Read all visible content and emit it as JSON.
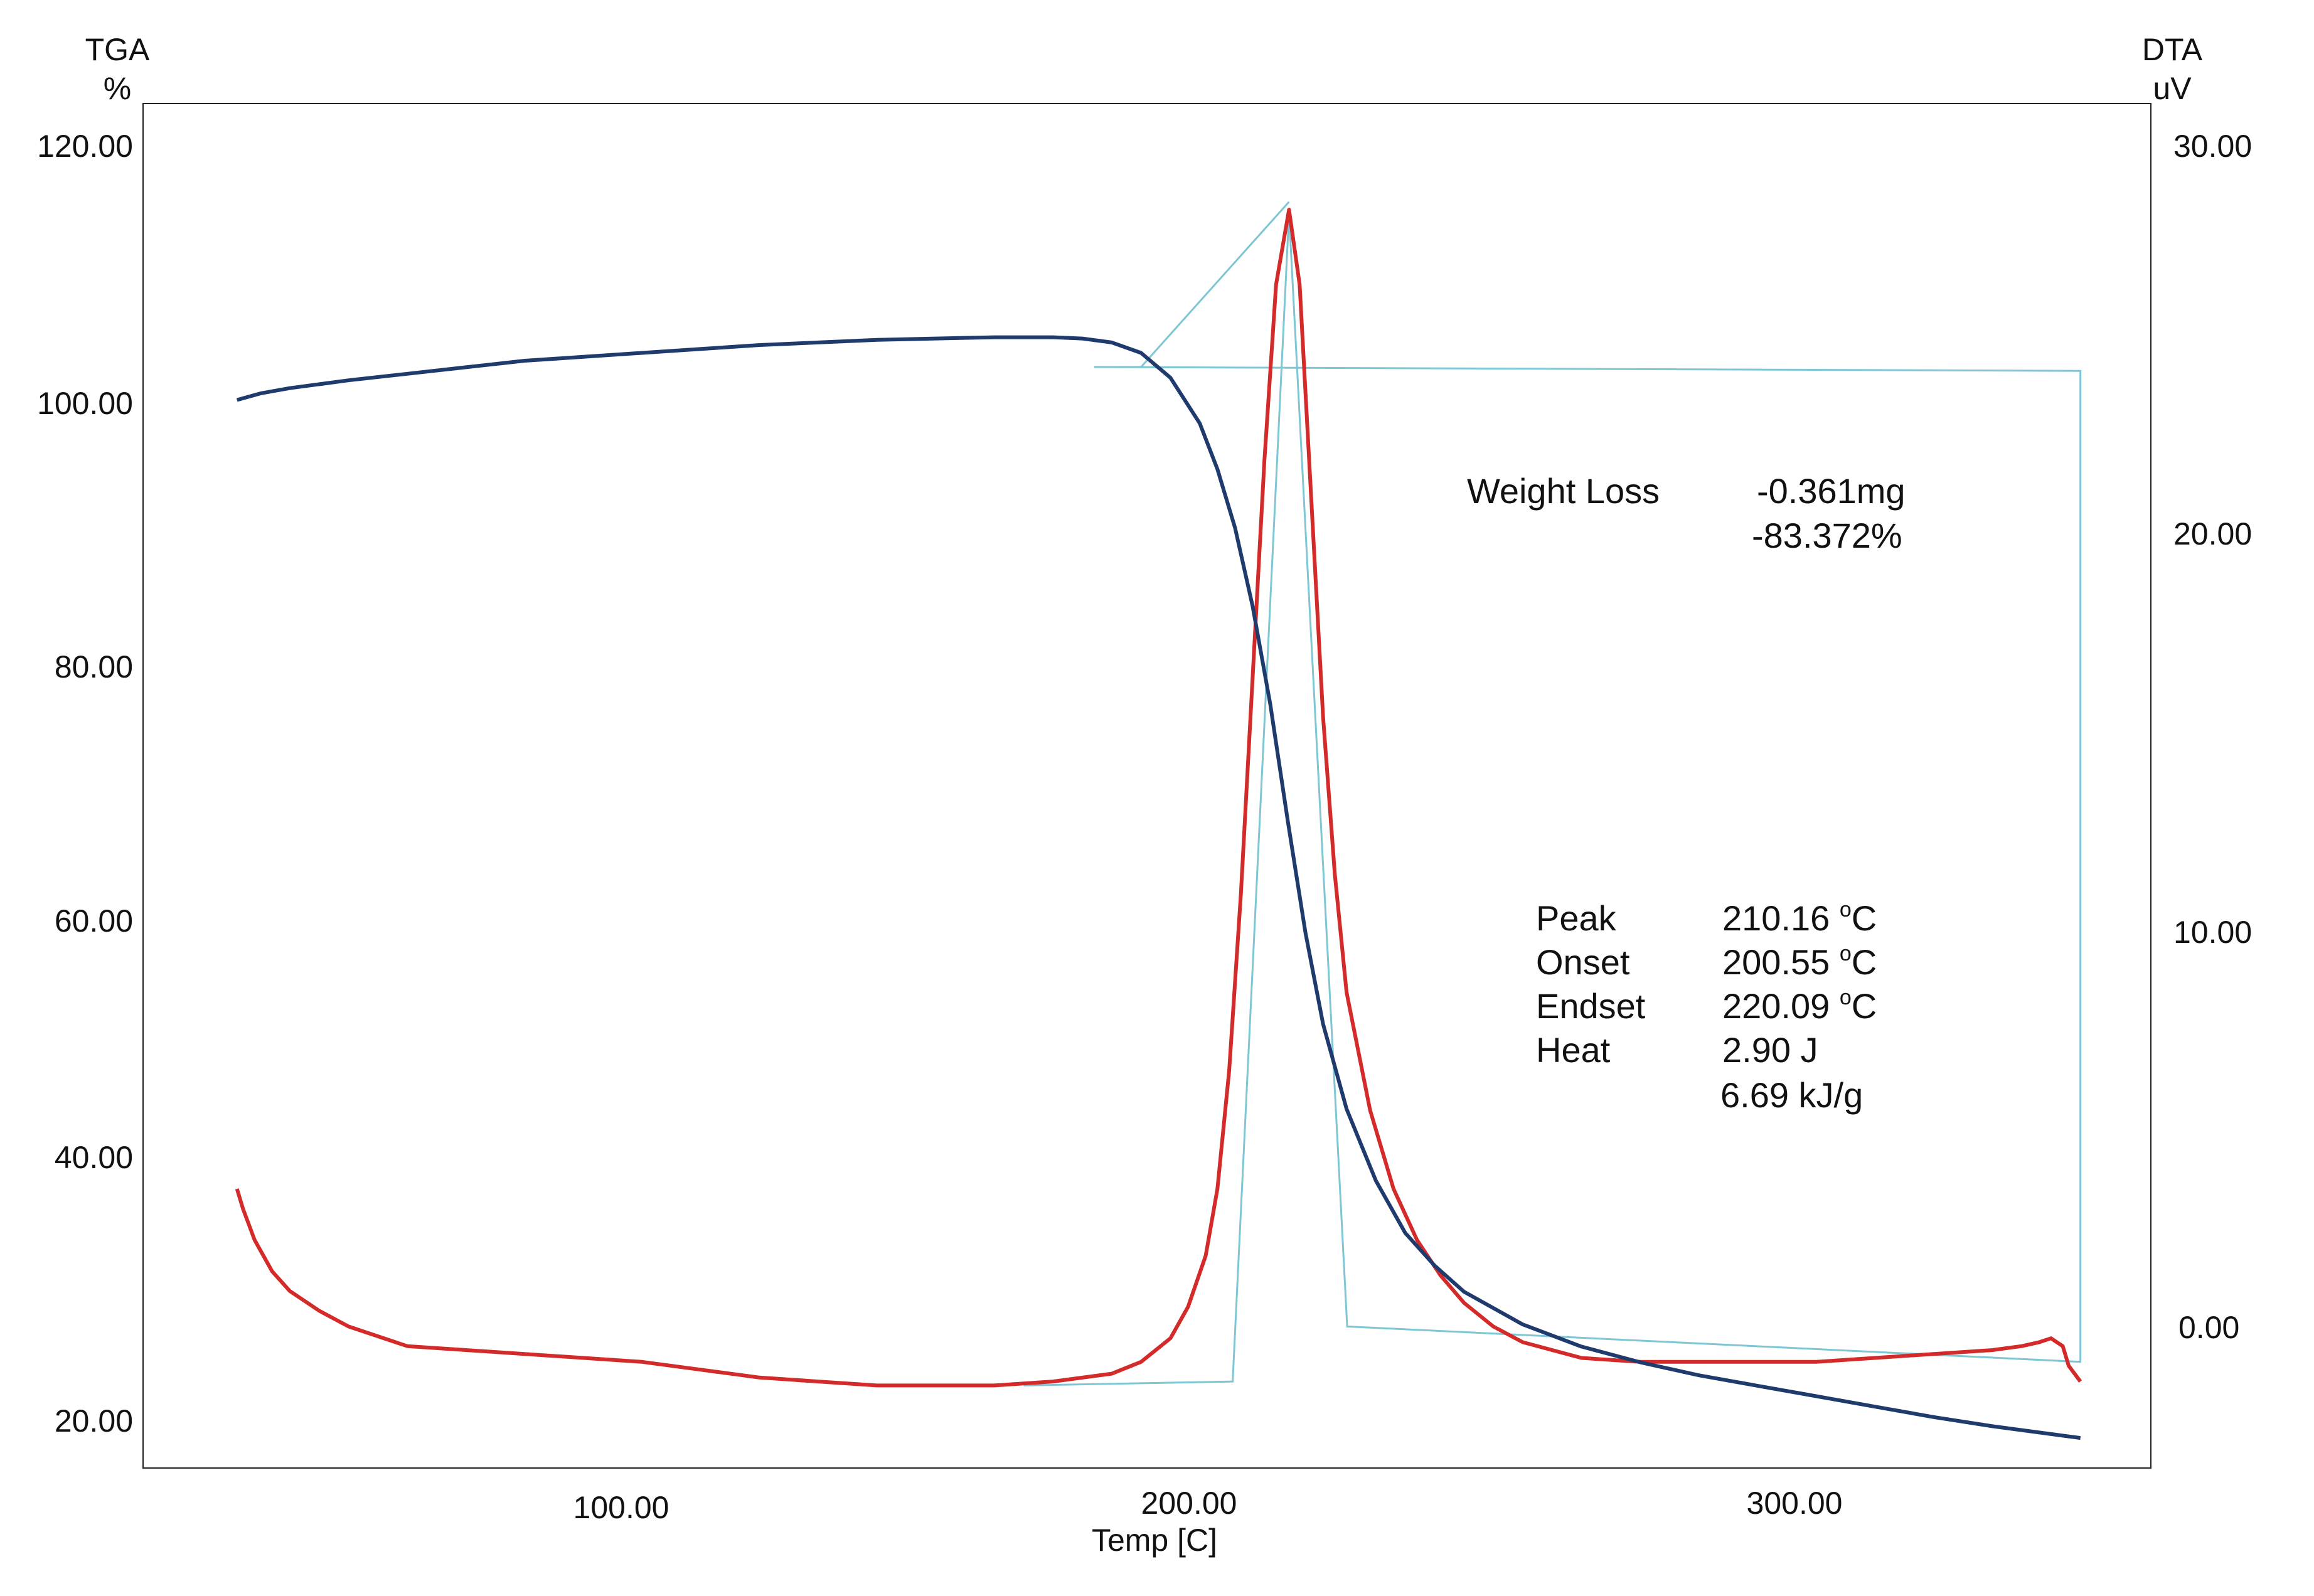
{
  "chart_data": {
    "type": "line",
    "xlabel": "Temp [C]",
    "xlim": [
      15,
      357
    ],
    "x_ticks": [
      "100.00",
      "200.00",
      "300.00"
    ],
    "y_left": {
      "label_line1": "TGA",
      "label_line2": "%",
      "ylim": [
        17.5,
        122
      ],
      "ticks": [
        "120.00",
        "100.00",
        "80.00",
        "60.00",
        "40.00",
        "20.00"
      ]
    },
    "y_right": {
      "label_line1": "DTA",
      "label_line2": "uV",
      "ylim": [
        -3.6,
        31.1
      ],
      "ticks": [
        "30.00",
        "20.00",
        "10.00",
        "0.00"
      ]
    },
    "colors": {
      "tga": "#1f3b6e",
      "dta": "#d42a2a",
      "baseline": "#7fc6d4",
      "frame": "#222222"
    },
    "series": [
      {
        "key": "tga",
        "axis": "left",
        "x": [
          31,
          35,
          40,
          50,
          60,
          70,
          80,
          90,
          100,
          110,
          120,
          130,
          140,
          150,
          160,
          170,
          175,
          180,
          185,
          190,
          195,
          198,
          201,
          204,
          207,
          210,
          213,
          216,
          220,
          225,
          230,
          235,
          240,
          250,
          260,
          270,
          280,
          290,
          300,
          310,
          320,
          330,
          340,
          345
        ],
        "y": [
          99.3,
          99.8,
          100.2,
          100.8,
          101.3,
          101.8,
          102.3,
          102.6,
          102.9,
          103.2,
          103.5,
          103.7,
          103.9,
          104.0,
          104.1,
          104.1,
          104.0,
          103.7,
          102.9,
          101.0,
          97.5,
          94.0,
          89.5,
          83.5,
          76.0,
          67.0,
          58.5,
          51.5,
          45.0,
          39.5,
          35.5,
          33.0,
          31.0,
          28.5,
          26.8,
          25.6,
          24.6,
          23.8,
          23.0,
          22.2,
          21.4,
          20.7,
          20.1,
          19.8
        ]
      },
      {
        "key": "dta",
        "axis": "right",
        "x": [
          31,
          32,
          34,
          37,
          40,
          45,
          50,
          60,
          70,
          80,
          90,
          100,
          110,
          120,
          130,
          140,
          150,
          160,
          170,
          180,
          185,
          190,
          193,
          196,
          198,
          200,
          202,
          204,
          206,
          208,
          210.2,
          212,
          214,
          216,
          218,
          220,
          224,
          228,
          232,
          236,
          240,
          245,
          250,
          260,
          270,
          280,
          290,
          300,
          310,
          320,
          330,
          335,
          338,
          340,
          342,
          343,
          345
        ],
        "y": [
          3.5,
          3.0,
          2.2,
          1.4,
          0.9,
          0.4,
          0.0,
          -0.5,
          -0.6,
          -0.7,
          -0.8,
          -0.9,
          -1.1,
          -1.3,
          -1.4,
          -1.5,
          -1.5,
          -1.5,
          -1.4,
          -1.2,
          -0.9,
          -0.3,
          0.5,
          1.8,
          3.5,
          6.5,
          11.0,
          16.5,
          22.0,
          26.5,
          28.4,
          26.5,
          21.0,
          15.5,
          11.5,
          8.5,
          5.5,
          3.5,
          2.2,
          1.3,
          0.6,
          0.0,
          -0.4,
          -0.8,
          -0.9,
          -0.9,
          -0.9,
          -0.9,
          -0.8,
          -0.7,
          -0.6,
          -0.5,
          -0.4,
          -0.3,
          -0.5,
          -1.0,
          -1.4
        ]
      },
      {
        "key": "baseline",
        "axis": "right",
        "x": [
          165,
          200.6,
          210.2,
          220.1,
          345,
          345,
          177,
          185,
          210.2
        ],
        "y": [
          -1.5,
          -1.4,
          28.3,
          0.0,
          -0.9,
          24.3,
          24.4,
          24.4,
          28.6
        ]
      }
    ],
    "annotations": {
      "weight_loss": {
        "label": "Weight Loss",
        "value_mg": "-0.361mg",
        "value_pct": "-83.372%"
      },
      "peak_table": [
        {
          "label": "Peak",
          "value": "210.16 ",
          "unit": "C"
        },
        {
          "label": "Onset",
          "value": "200.55 ",
          "unit": "C"
        },
        {
          "label": "Endset",
          "value": "220.09 ",
          "unit": "C"
        },
        {
          "label": "Heat",
          "value": "2.90 J",
          "unit": ""
        },
        {
          "label": "",
          "value": "6.69 kJ/g",
          "unit": ""
        }
      ],
      "degree_sign": "o"
    }
  }
}
